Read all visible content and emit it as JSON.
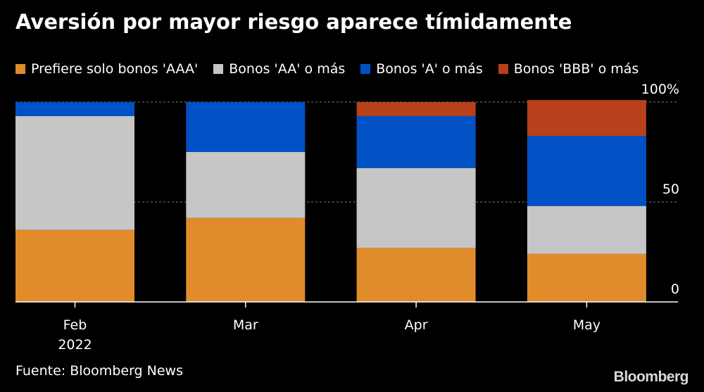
{
  "title": "Aversión por mayor riesgo aparece tímidamente",
  "source": "Fuente: Bloomberg News",
  "logo": "Bloomberg",
  "colors": {
    "background": "#000000",
    "text": "#ffffff",
    "grid": "#777777",
    "axis": "#ffffff"
  },
  "chart_data": {
    "type": "bar",
    "stacked": true,
    "categories": [
      "Feb",
      "Mar",
      "Apr",
      "May"
    ],
    "category_sublabels": [
      "2022",
      "",
      "",
      ""
    ],
    "series": [
      {
        "name": "Prefiere solo bonos 'AAA'",
        "color": "#e08c2a",
        "values": [
          36,
          42,
          27,
          24
        ]
      },
      {
        "name": "Bonos 'AA' o más",
        "color": "#c6c6c6",
        "values": [
          57,
          33,
          40,
          24
        ]
      },
      {
        "name": "Bonos 'A' o más",
        "color": "#0052c4",
        "values": [
          7,
          25,
          26,
          35
        ]
      },
      {
        "name": "Bonos 'BBB' o más",
        "color": "#b8401b",
        "values": [
          0,
          0,
          7,
          18
        ]
      }
    ],
    "yticks": [
      {
        "value": 0,
        "label": "0"
      },
      {
        "value": 50,
        "label": "50"
      },
      {
        "value": 100,
        "label": "100%"
      }
    ],
    "ylim": [
      0,
      100
    ],
    "grid": true,
    "y_axis_side": "right",
    "legend_position": "top"
  }
}
